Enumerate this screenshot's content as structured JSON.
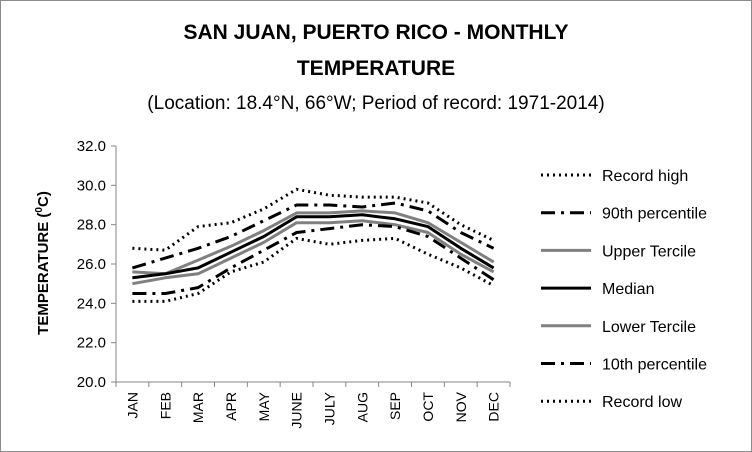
{
  "chart_data": {
    "type": "line",
    "title_line1": "SAN JUAN, PUERTO RICO - MONTHLY",
    "title_line2": "TEMPERATURE",
    "subtitle": "(Location: 18.4°N, 66°W; Period of record: 1971-2014)",
    "ylabel_main": "TEMPERATURE (",
    "ylabel_sup": "0",
    "ylabel_end": "C)",
    "xlabel": "",
    "ylim": [
      20,
      32
    ],
    "yticks": [
      "20.0",
      "22.0",
      "24.0",
      "26.0",
      "28.0",
      "30.0",
      "32.0"
    ],
    "grid": false,
    "legend_position": "right",
    "categories": [
      "JAN",
      "FEB",
      "MAR",
      "APR",
      "MAY",
      "JUNE",
      "JULY",
      "AUG",
      "SEP",
      "OCT",
      "NOV",
      "DEC"
    ],
    "series": [
      {
        "name": "Record high",
        "color": "#000000",
        "style": "dotted",
        "values": [
          26.8,
          26.7,
          27.9,
          28.1,
          28.8,
          29.8,
          29.5,
          29.4,
          29.4,
          29.1,
          28.0,
          27.2
        ]
      },
      {
        "name": "90th percentile",
        "color": "#000000",
        "style": "dashdot",
        "values": [
          25.8,
          26.3,
          26.8,
          27.4,
          28.2,
          29.0,
          29.0,
          28.9,
          29.1,
          28.7,
          27.6,
          26.8
        ]
      },
      {
        "name": "Upper Tercile",
        "color": "#808080",
        "style": "solid",
        "values": [
          25.6,
          25.5,
          26.2,
          26.9,
          27.7,
          28.6,
          28.6,
          28.7,
          28.6,
          28.1,
          27.1,
          26.1
        ]
      },
      {
        "name": "Median",
        "color": "#000000",
        "style": "solid",
        "values": [
          25.3,
          25.5,
          25.8,
          26.6,
          27.4,
          28.4,
          28.4,
          28.5,
          28.3,
          27.9,
          26.8,
          25.8
        ]
      },
      {
        "name": "Lower Tercile",
        "color": "#808080",
        "style": "solid",
        "values": [
          25.0,
          25.3,
          25.5,
          26.3,
          27.1,
          28.1,
          28.1,
          28.2,
          28.0,
          27.6,
          26.5,
          25.6
        ]
      },
      {
        "name": "10th percentile",
        "color": "#000000",
        "style": "dashdot",
        "values": [
          24.5,
          24.5,
          24.8,
          25.8,
          26.7,
          27.6,
          27.8,
          28.0,
          27.9,
          27.4,
          26.3,
          25.2
        ]
      },
      {
        "name": "Record low",
        "color": "#000000",
        "style": "dotted",
        "values": [
          24.1,
          24.1,
          24.5,
          25.6,
          26.1,
          27.3,
          27.0,
          27.2,
          27.3,
          26.5,
          25.8,
          24.9
        ]
      }
    ]
  }
}
